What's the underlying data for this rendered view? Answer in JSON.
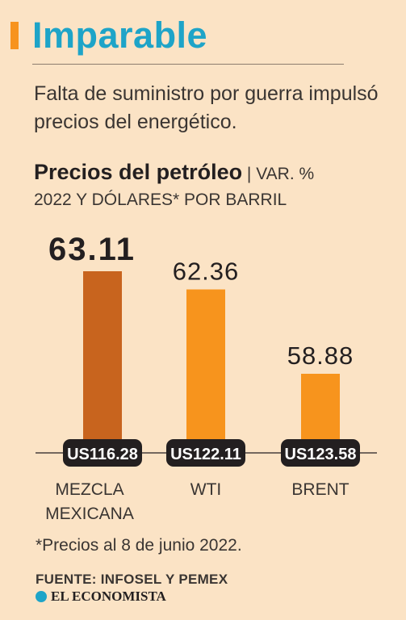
{
  "header": {
    "title": "Imparable",
    "subtitle": "Falta de suministro por guerra impulsó precios del energético."
  },
  "chart_heading": {
    "bold": "Precios del petróleo",
    "separator": " | ",
    "light": "VAR. %",
    "line2": "2022 Y DÓLARES* POR BARRIL"
  },
  "chart_data": {
    "type": "bar",
    "categories": [
      "MEZCLA MEXICANA",
      "WTI",
      "BRENT"
    ],
    "category_lines": [
      [
        "MEZCLA",
        "MEXICANA"
      ],
      [
        "WTI"
      ],
      [
        "BRENT"
      ]
    ],
    "values": [
      63.11,
      62.36,
      58.88
    ],
    "value_labels": [
      "63.11",
      "62.36",
      "58.88"
    ],
    "price_labels": [
      "US116.28",
      "US122.11",
      "US123.58"
    ],
    "prices": [
      116.28,
      122.11,
      123.58
    ],
    "bar_colors": [
      "#c8641e",
      "#f7941d",
      "#f7941d"
    ],
    "highlight_index": 0
  },
  "footer": {
    "footnote": "*Precios al 8 de junio 2022.",
    "source": "FUENTE: INFOSEL Y PEMEX",
    "brand": "EL ECONOMISTA"
  },
  "colors": {
    "background": "#fbe3c5",
    "title": "#1ea4c8",
    "accent": "#f7931e",
    "pill": "#231f20"
  }
}
